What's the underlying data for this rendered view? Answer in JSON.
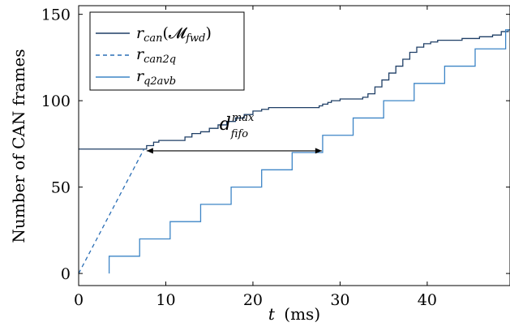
{
  "chart_data": {
    "type": "line",
    "xlabel_var": "t",
    "xlabel_unit": "(ms)",
    "ylabel": "Number of CAN frames",
    "xlim": [
      0,
      49.5
    ],
    "ylim": [
      -7,
      155
    ],
    "xticks": [
      0,
      10,
      20,
      30,
      40
    ],
    "yticks": [
      0,
      50,
      100,
      150
    ],
    "grid": false,
    "legend_position": "top-left",
    "colors": {
      "fwd": "#1f3f66",
      "can2q": "#2a6eb5",
      "q2avb": "#3d85c6",
      "annotation": "#000000"
    },
    "series": [
      {
        "key": "fwd",
        "name_main": "r",
        "name_sub": "can",
        "name_arg": "(𝓜",
        "name_arg_sub": "fwd",
        "name_close": ")",
        "style": "solid",
        "step": true,
        "points": [
          [
            0,
            72
          ],
          [
            7.2,
            72
          ],
          [
            7.8,
            74
          ],
          [
            8.6,
            76
          ],
          [
            9.2,
            77
          ],
          [
            11.5,
            77
          ],
          [
            12.2,
            79
          ],
          [
            13.0,
            81
          ],
          [
            14.0,
            82
          ],
          [
            15.0,
            84
          ],
          [
            16.0,
            86
          ],
          [
            17.0,
            88
          ],
          [
            18.0,
            90
          ],
          [
            19.0,
            92
          ],
          [
            20.0,
            94
          ],
          [
            21.0,
            95
          ],
          [
            21.8,
            96
          ],
          [
            27.0,
            96
          ],
          [
            27.6,
            97
          ],
          [
            28.0,
            98
          ],
          [
            28.6,
            99
          ],
          [
            29.0,
            100
          ],
          [
            30.0,
            101
          ],
          [
            32.0,
            101
          ],
          [
            32.6,
            102
          ],
          [
            33.2,
            104
          ],
          [
            34.0,
            108
          ],
          [
            34.8,
            112
          ],
          [
            35.6,
            116
          ],
          [
            36.4,
            120
          ],
          [
            37.2,
            124
          ],
          [
            38.0,
            128
          ],
          [
            38.8,
            131
          ],
          [
            39.6,
            133
          ],
          [
            40.4,
            134
          ],
          [
            41.2,
            135
          ],
          [
            42.5,
            135
          ],
          [
            44.0,
            136
          ],
          [
            46.0,
            137
          ],
          [
            47.5,
            138
          ],
          [
            48.5,
            140
          ],
          [
            49.3,
            141
          ],
          [
            49.5,
            141
          ]
        ]
      },
      {
        "key": "can2q",
        "name_main": "r",
        "name_sub": "can2q",
        "style": "dashed",
        "step": false,
        "points": [
          [
            0,
            0
          ],
          [
            7.5,
            72
          ]
        ]
      },
      {
        "key": "q2avb",
        "name_main": "r",
        "name_sub": "q2avb",
        "style": "solid",
        "step": true,
        "points": [
          [
            3.5,
            0
          ],
          [
            3.5,
            10
          ],
          [
            7.0,
            10
          ],
          [
            7.0,
            20
          ],
          [
            10.5,
            20
          ],
          [
            10.5,
            30
          ],
          [
            14.0,
            30
          ],
          [
            14.0,
            40
          ],
          [
            17.5,
            40
          ],
          [
            17.5,
            50
          ],
          [
            21.0,
            50
          ],
          [
            21.0,
            60
          ],
          [
            24.5,
            60
          ],
          [
            24.5,
            70
          ],
          [
            28.0,
            70
          ],
          [
            28.0,
            80
          ],
          [
            31.5,
            80
          ],
          [
            31.5,
            90
          ],
          [
            35.0,
            90
          ],
          [
            35.0,
            100
          ],
          [
            38.5,
            100
          ],
          [
            38.5,
            110
          ],
          [
            42.0,
            110
          ],
          [
            42.0,
            120
          ],
          [
            45.5,
            120
          ],
          [
            45.5,
            130
          ],
          [
            49.0,
            130
          ],
          [
            49.0,
            141
          ],
          [
            49.5,
            141
          ]
        ]
      }
    ],
    "annotation": {
      "label_main": "d",
      "label_sup": "max",
      "label_sub": "fifo",
      "from": [
        7.8,
        71
      ],
      "to": [
        27.9,
        71
      ]
    }
  }
}
